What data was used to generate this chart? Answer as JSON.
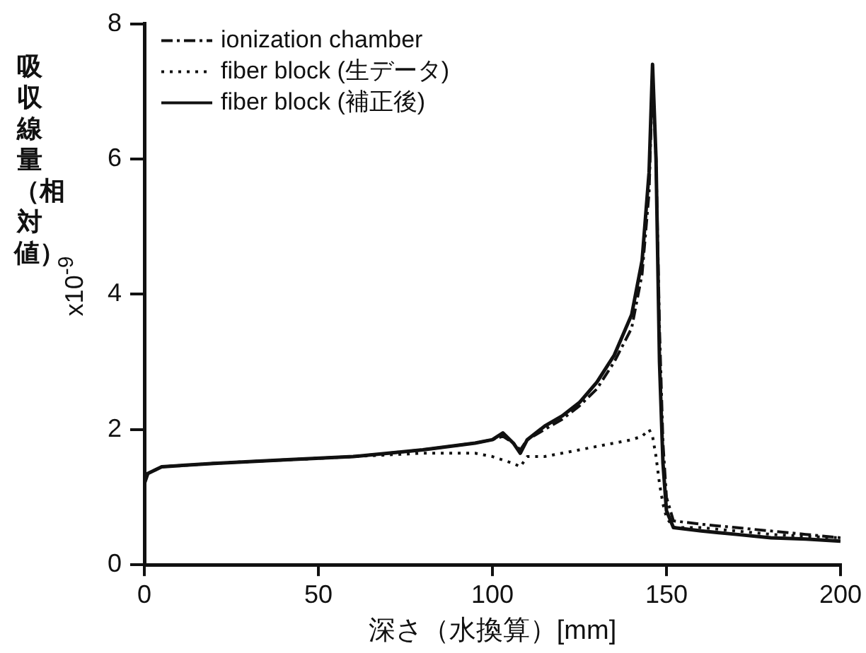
{
  "chart_data": {
    "type": "line",
    "xlabel": "深さ（水換算）[mm]",
    "ylabel": "吸収線量（相対値）",
    "annotations": [
      "x10$^{-9}$"
    ],
    "x": [
      0,
      1,
      5,
      20,
      40,
      60,
      80,
      95,
      100,
      103,
      106,
      108,
      110,
      115,
      120,
      125,
      130,
      135,
      140,
      143,
      145,
      146,
      147,
      148,
      149,
      150,
      152,
      160,
      170,
      180,
      190,
      200
    ],
    "series": [
      {
        "name": "ionization chamber",
        "color": "#111111",
        "line_style": "dashed",
        "values": [
          1.25,
          1.35,
          1.45,
          1.5,
          1.55,
          1.6,
          1.7,
          1.8,
          1.85,
          1.9,
          1.8,
          1.7,
          1.85,
          2.0,
          2.15,
          2.35,
          2.6,
          3.0,
          3.5,
          4.3,
          5.5,
          7.2,
          6.0,
          3.5,
          1.8,
          1.0,
          0.65,
          0.6,
          0.55,
          0.5,
          0.45,
          0.4
        ]
      },
      {
        "name": "fiber block (生データ)",
        "color": "#111111",
        "line_style": "dotted",
        "values": [
          1.2,
          1.35,
          1.45,
          1.5,
          1.55,
          1.6,
          1.65,
          1.65,
          1.6,
          1.55,
          1.5,
          1.45,
          1.6,
          1.6,
          1.65,
          1.7,
          1.75,
          1.8,
          1.85,
          1.9,
          2.0,
          1.9,
          1.6,
          1.2,
          0.9,
          0.7,
          0.55,
          0.55,
          0.5,
          0.45,
          0.42,
          0.4
        ]
      },
      {
        "name": "fiber block (補正後)",
        "color": "#111111",
        "line_style": "solid",
        "values": [
          1.2,
          1.35,
          1.45,
          1.5,
          1.55,
          1.6,
          1.7,
          1.8,
          1.85,
          1.95,
          1.8,
          1.65,
          1.85,
          2.05,
          2.2,
          2.4,
          2.7,
          3.1,
          3.7,
          4.5,
          5.8,
          7.4,
          6.0,
          3.0,
          1.5,
          0.8,
          0.55,
          0.5,
          0.45,
          0.4,
          0.38,
          0.35
        ]
      }
    ],
    "xlim": [
      0,
      200
    ],
    "xticks": [
      0,
      50,
      100,
      150,
      200
    ],
    "ylim": [
      0,
      8
    ],
    "yticks": [
      0,
      2,
      4,
      6,
      8
    ],
    "grid": false,
    "legend": "top left",
    "marker": "none"
  }
}
